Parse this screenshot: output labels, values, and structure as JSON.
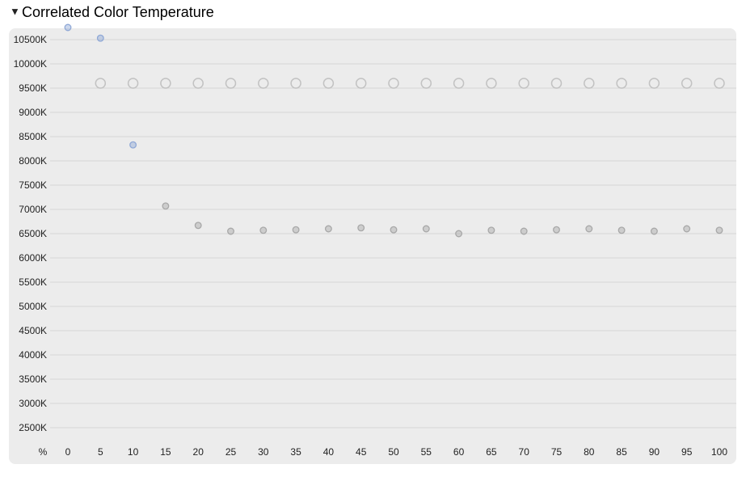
{
  "chart_data": {
    "type": "scatter",
    "title": "Correlated Color Temperature",
    "x_label": "%",
    "x": [
      0,
      5,
      10,
      15,
      20,
      25,
      30,
      35,
      40,
      45,
      50,
      55,
      60,
      65,
      70,
      75,
      80,
      85,
      90,
      95,
      100
    ],
    "xlim": [
      0,
      100
    ],
    "xticks": [
      0,
      5,
      10,
      15,
      20,
      25,
      30,
      35,
      40,
      45,
      50,
      55,
      60,
      65,
      70,
      75,
      80,
      85,
      90,
      95,
      100
    ],
    "ylim": [
      2250,
      10750
    ],
    "yticks": [
      {
        "value": 2500,
        "label": "2500K"
      },
      {
        "value": 3000,
        "label": "3000K"
      },
      {
        "value": 3500,
        "label": "3500K"
      },
      {
        "value": 4000,
        "label": "4000K"
      },
      {
        "value": 4500,
        "label": "4500K"
      },
      {
        "value": 5000,
        "label": "5000K"
      },
      {
        "value": 5500,
        "label": "5500K"
      },
      {
        "value": 6000,
        "label": "6000K"
      },
      {
        "value": 6500,
        "label": "6500K"
      },
      {
        "value": 7000,
        "label": "7000K"
      },
      {
        "value": 7500,
        "label": "7500K"
      },
      {
        "value": 8000,
        "label": "8000K"
      },
      {
        "value": 8500,
        "label": "8500K"
      },
      {
        "value": 9000,
        "label": "9000K"
      },
      {
        "value": 9500,
        "label": "9500K"
      },
      {
        "value": 10000,
        "label": "10000K"
      },
      {
        "value": 10500,
        "label": "10500K"
      }
    ],
    "grid": true,
    "series": [
      {
        "marker": "small",
        "values": [
          10750,
          10530,
          8330,
          7070,
          6670,
          6550,
          6570,
          6580,
          6600,
          6620,
          6580,
          6600,
          6500,
          6570,
          6550,
          6580,
          6600,
          6570,
          6550,
          6600,
          6570
        ],
        "colors": [
          "#8fa8d6",
          "#8fa8d6",
          "#8fa8d6",
          "#a8a8a8",
          "#a8a8a8",
          "#a8a8a8",
          "#a8a8a8",
          "#a8a8a8",
          "#a8a8a8",
          "#a8a8a8",
          "#a8a8a8",
          "#a8a8a8",
          "#a8a8a8",
          "#a8a8a8",
          "#a8a8a8",
          "#a8a8a8",
          "#a8a8a8",
          "#a8a8a8",
          "#a8a8a8",
          "#a8a8a8",
          "#a8a8a8"
        ]
      },
      {
        "marker": "large",
        "color": "#c2c2c2",
        "values": [
          null,
          9600,
          9600,
          9600,
          9600,
          9600,
          9600,
          9600,
          9600,
          9600,
          9600,
          9600,
          9600,
          9600,
          9600,
          9600,
          9600,
          9600,
          9600,
          9600,
          9600
        ]
      }
    ]
  }
}
